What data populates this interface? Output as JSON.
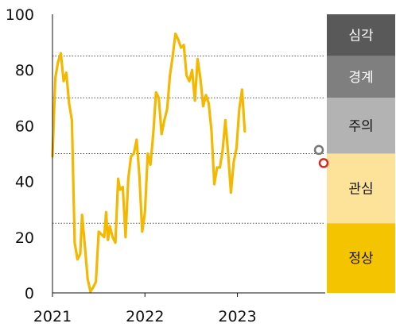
{
  "chart_data": {
    "type": "line",
    "title": "",
    "xlabel": "",
    "ylabel": "",
    "ylim": [
      0,
      100
    ],
    "y_ticks": [
      "0",
      "20",
      "40",
      "60",
      "80",
      "100"
    ],
    "x_ticks": [
      "2021",
      "2022",
      "2023"
    ],
    "grid": "horizontal dotted at 25, 50, 70, 85",
    "line_color": "#F5B800",
    "series": [
      {
        "values_by_year": [
          [
            2021.0,
            49
          ],
          [
            2021.03,
            77
          ],
          [
            2021.06,
            83
          ],
          [
            2021.09,
            86
          ],
          [
            2021.12,
            76
          ],
          [
            2021.15,
            79
          ],
          [
            2021.18,
            68
          ],
          [
            2021.21,
            62
          ],
          [
            2021.24,
            18
          ],
          [
            2021.27,
            12
          ],
          [
            2021.3,
            14
          ],
          [
            2021.32,
            28
          ],
          [
            2021.35,
            17
          ],
          [
            2021.38,
            5
          ],
          [
            2021.41,
            0.5
          ],
          [
            2021.44,
            2
          ],
          [
            2021.47,
            4
          ],
          [
            2021.5,
            22
          ],
          [
            2021.53,
            21
          ],
          [
            2021.56,
            20
          ],
          [
            2021.58,
            29
          ],
          [
            2021.6,
            19
          ],
          [
            2021.62,
            24
          ],
          [
            2021.65,
            20
          ],
          [
            2021.68,
            18
          ],
          [
            2021.71,
            41
          ],
          [
            2021.73,
            37
          ],
          [
            2021.76,
            38
          ],
          [
            2021.79,
            20
          ],
          [
            2021.82,
            41
          ],
          [
            2021.85,
            49
          ],
          [
            2021.88,
            50
          ],
          [
            2021.91,
            55
          ],
          [
            2021.94,
            42
          ],
          [
            2021.97,
            22
          ],
          [
            2022.0,
            29
          ],
          [
            2022.03,
            50
          ],
          [
            2022.06,
            46
          ],
          [
            2022.09,
            57
          ],
          [
            2022.12,
            72
          ],
          [
            2022.15,
            70
          ],
          [
            2022.18,
            57
          ],
          [
            2022.21,
            62
          ],
          [
            2022.24,
            66
          ],
          [
            2022.27,
            78
          ],
          [
            2022.3,
            85
          ],
          [
            2022.33,
            93
          ],
          [
            2022.36,
            91
          ],
          [
            2022.39,
            88
          ],
          [
            2022.42,
            89
          ],
          [
            2022.45,
            78
          ],
          [
            2022.48,
            76
          ],
          [
            2022.51,
            80
          ],
          [
            2022.54,
            69
          ],
          [
            2022.57,
            84
          ],
          [
            2022.6,
            77
          ],
          [
            2022.63,
            67
          ],
          [
            2022.66,
            71
          ],
          [
            2022.69,
            68
          ],
          [
            2022.72,
            58
          ],
          [
            2022.75,
            39
          ],
          [
            2022.78,
            45
          ],
          [
            2022.81,
            45
          ],
          [
            2022.84,
            51
          ],
          [
            2022.87,
            62
          ],
          [
            2022.9,
            50
          ],
          [
            2022.93,
            36
          ],
          [
            2022.96,
            47
          ],
          [
            2022.99,
            52
          ],
          [
            2023.02,
            66
          ],
          [
            2023.05,
            73
          ],
          [
            2023.08,
            58
          ]
        ]
      }
    ],
    "markers": [
      {
        "name": "gray-point",
        "value": 51.3,
        "color": "#777777"
      },
      {
        "name": "red-point",
        "value": 46.6,
        "color": "#E0261F"
      }
    ],
    "zones": [
      {
        "label": "심각",
        "color": "#595959",
        "text_color": "#ffffff",
        "range": [
          85,
          100
        ]
      },
      {
        "label": "경계",
        "color": "#7f7f7f",
        "text_color": "#ffffff",
        "range": [
          70,
          85
        ]
      },
      {
        "label": "주의",
        "color": "#b3b3b3",
        "text_color": "#111111",
        "range": [
          50,
          70
        ]
      },
      {
        "label": "관심",
        "color": "#fde39a",
        "text_color": "#111111",
        "range": [
          25,
          50
        ]
      },
      {
        "label": "정상",
        "color": "#f5c400",
        "text_color": "#111111",
        "range": [
          0,
          25
        ]
      }
    ]
  }
}
